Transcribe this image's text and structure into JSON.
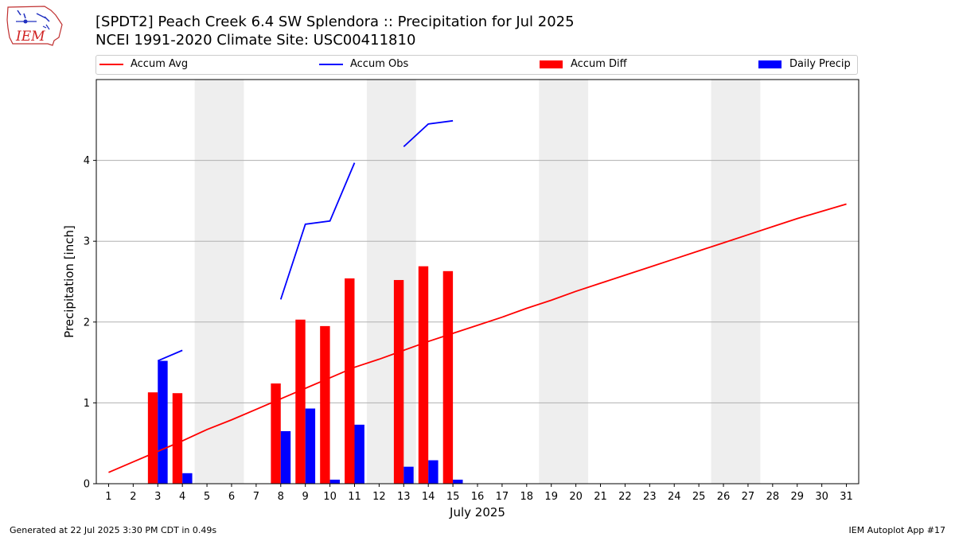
{
  "header": {
    "title_line1": "[SPDT2] Peach Creek 6.4 SW Splendora :: Precipitation for Jul 2025",
    "title_line2": "NCEI 1991-2020 Climate Site: USC00411810",
    "logo_text": "IEM"
  },
  "footer": {
    "generated": "Generated at 22 Jul 2025 3:30 PM CDT in 0.49s",
    "app": "IEM Autoplot App #17"
  },
  "colors": {
    "accum_avg": "#ff0000",
    "accum_obs": "#0000ff",
    "accum_diff": "#ff0000",
    "daily_precip": "#0000ff",
    "weekend_shade": "#eeeeee",
    "grid": "#b0b0b0"
  },
  "chart_data": {
    "type": "bar",
    "xlabel": "July 2025",
    "ylabel": "Precipitation [inch]",
    "ylim": [
      0,
      5.0
    ],
    "xlim": [
      0.5,
      31.5
    ],
    "yticks": [
      0,
      1,
      2,
      3,
      4
    ],
    "x": [
      1,
      2,
      3,
      4,
      5,
      6,
      7,
      8,
      9,
      10,
      11,
      12,
      13,
      14,
      15,
      16,
      17,
      18,
      19,
      20,
      21,
      22,
      23,
      24,
      25,
      26,
      27,
      28,
      29,
      30,
      31
    ],
    "grid": "y",
    "legend_position": "top",
    "weekend_shading": [
      [
        4.5,
        6.5
      ],
      [
        11.5,
        13.5
      ],
      [
        18.5,
        20.5
      ],
      [
        25.5,
        27.5
      ]
    ],
    "series": [
      {
        "name": "Accum Avg",
        "kind": "line",
        "x": [
          1,
          2,
          3,
          4,
          5,
          6,
          7,
          8,
          9,
          10,
          11,
          12,
          13,
          14,
          15,
          16,
          17,
          18,
          19,
          20,
          21,
          22,
          23,
          24,
          25,
          26,
          27,
          28,
          29,
          30,
          31
        ],
        "values": [
          0.14,
          0.27,
          0.4,
          0.53,
          0.67,
          0.79,
          0.92,
          1.05,
          1.18,
          1.31,
          1.44,
          1.54,
          1.65,
          1.76,
          1.86,
          1.96,
          2.06,
          2.17,
          2.27,
          2.38,
          2.48,
          2.58,
          2.68,
          2.78,
          2.88,
          2.98,
          3.08,
          3.18,
          3.28,
          3.37,
          3.46
        ]
      },
      {
        "name": "Accum Obs",
        "kind": "line",
        "segments": [
          {
            "x": [
              3,
              4
            ],
            "values": [
              1.52,
              1.65
            ]
          },
          {
            "x": [
              8,
              9,
              10,
              11
            ],
            "values": [
              2.28,
              3.21,
              3.25,
              3.97
            ]
          },
          {
            "x": [
              13,
              14,
              15
            ],
            "values": [
              4.17,
              4.45,
              4.49
            ]
          }
        ]
      },
      {
        "name": "Accum Diff",
        "kind": "bar",
        "x": [
          3,
          4,
          8,
          9,
          10,
          11,
          13,
          14,
          15
        ],
        "values": [
          1.13,
          1.12,
          1.24,
          2.03,
          1.95,
          2.54,
          2.52,
          2.69,
          2.63
        ]
      },
      {
        "name": "Daily Precip",
        "kind": "bar",
        "x": [
          3,
          4,
          8,
          9,
          10,
          11,
          13,
          14,
          15
        ],
        "values": [
          1.52,
          0.13,
          0.65,
          0.93,
          0.05,
          0.73,
          0.21,
          0.29,
          0.05
        ]
      }
    ]
  }
}
